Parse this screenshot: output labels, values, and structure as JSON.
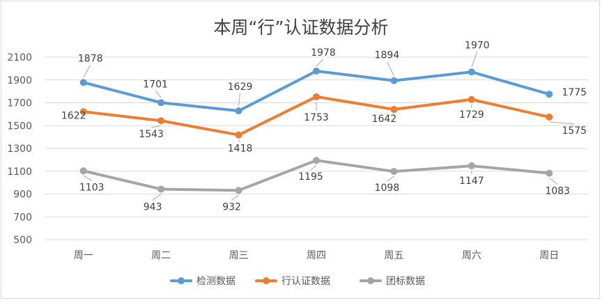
{
  "chart_data": {
    "type": "line",
    "title": "本周“行”认证数据分析",
    "categories": [
      "周一",
      "周二",
      "周三",
      "周四",
      "周五",
      "周六",
      "周日"
    ],
    "y_ticks": [
      500,
      700,
      900,
      1100,
      1300,
      1500,
      1700,
      1900,
      2100
    ],
    "ylim": [
      500,
      2100
    ],
    "grid": true,
    "legend_position": "bottom",
    "series": [
      {
        "name": "检测数据",
        "color": "#5b9bd5",
        "values": [
          1878,
          1701,
          1629,
          1978,
          1894,
          1970,
          1775
        ]
      },
      {
        "name": "行认证数据",
        "color": "#ed7d31",
        "values": [
          1622,
          1543,
          1418,
          1753,
          1642,
          1729,
          1575
        ]
      },
      {
        "name": "团标数据",
        "color": "#a5a5a5",
        "values": [
          1103,
          943,
          932,
          1195,
          1098,
          1147,
          1083
        ]
      }
    ]
  }
}
